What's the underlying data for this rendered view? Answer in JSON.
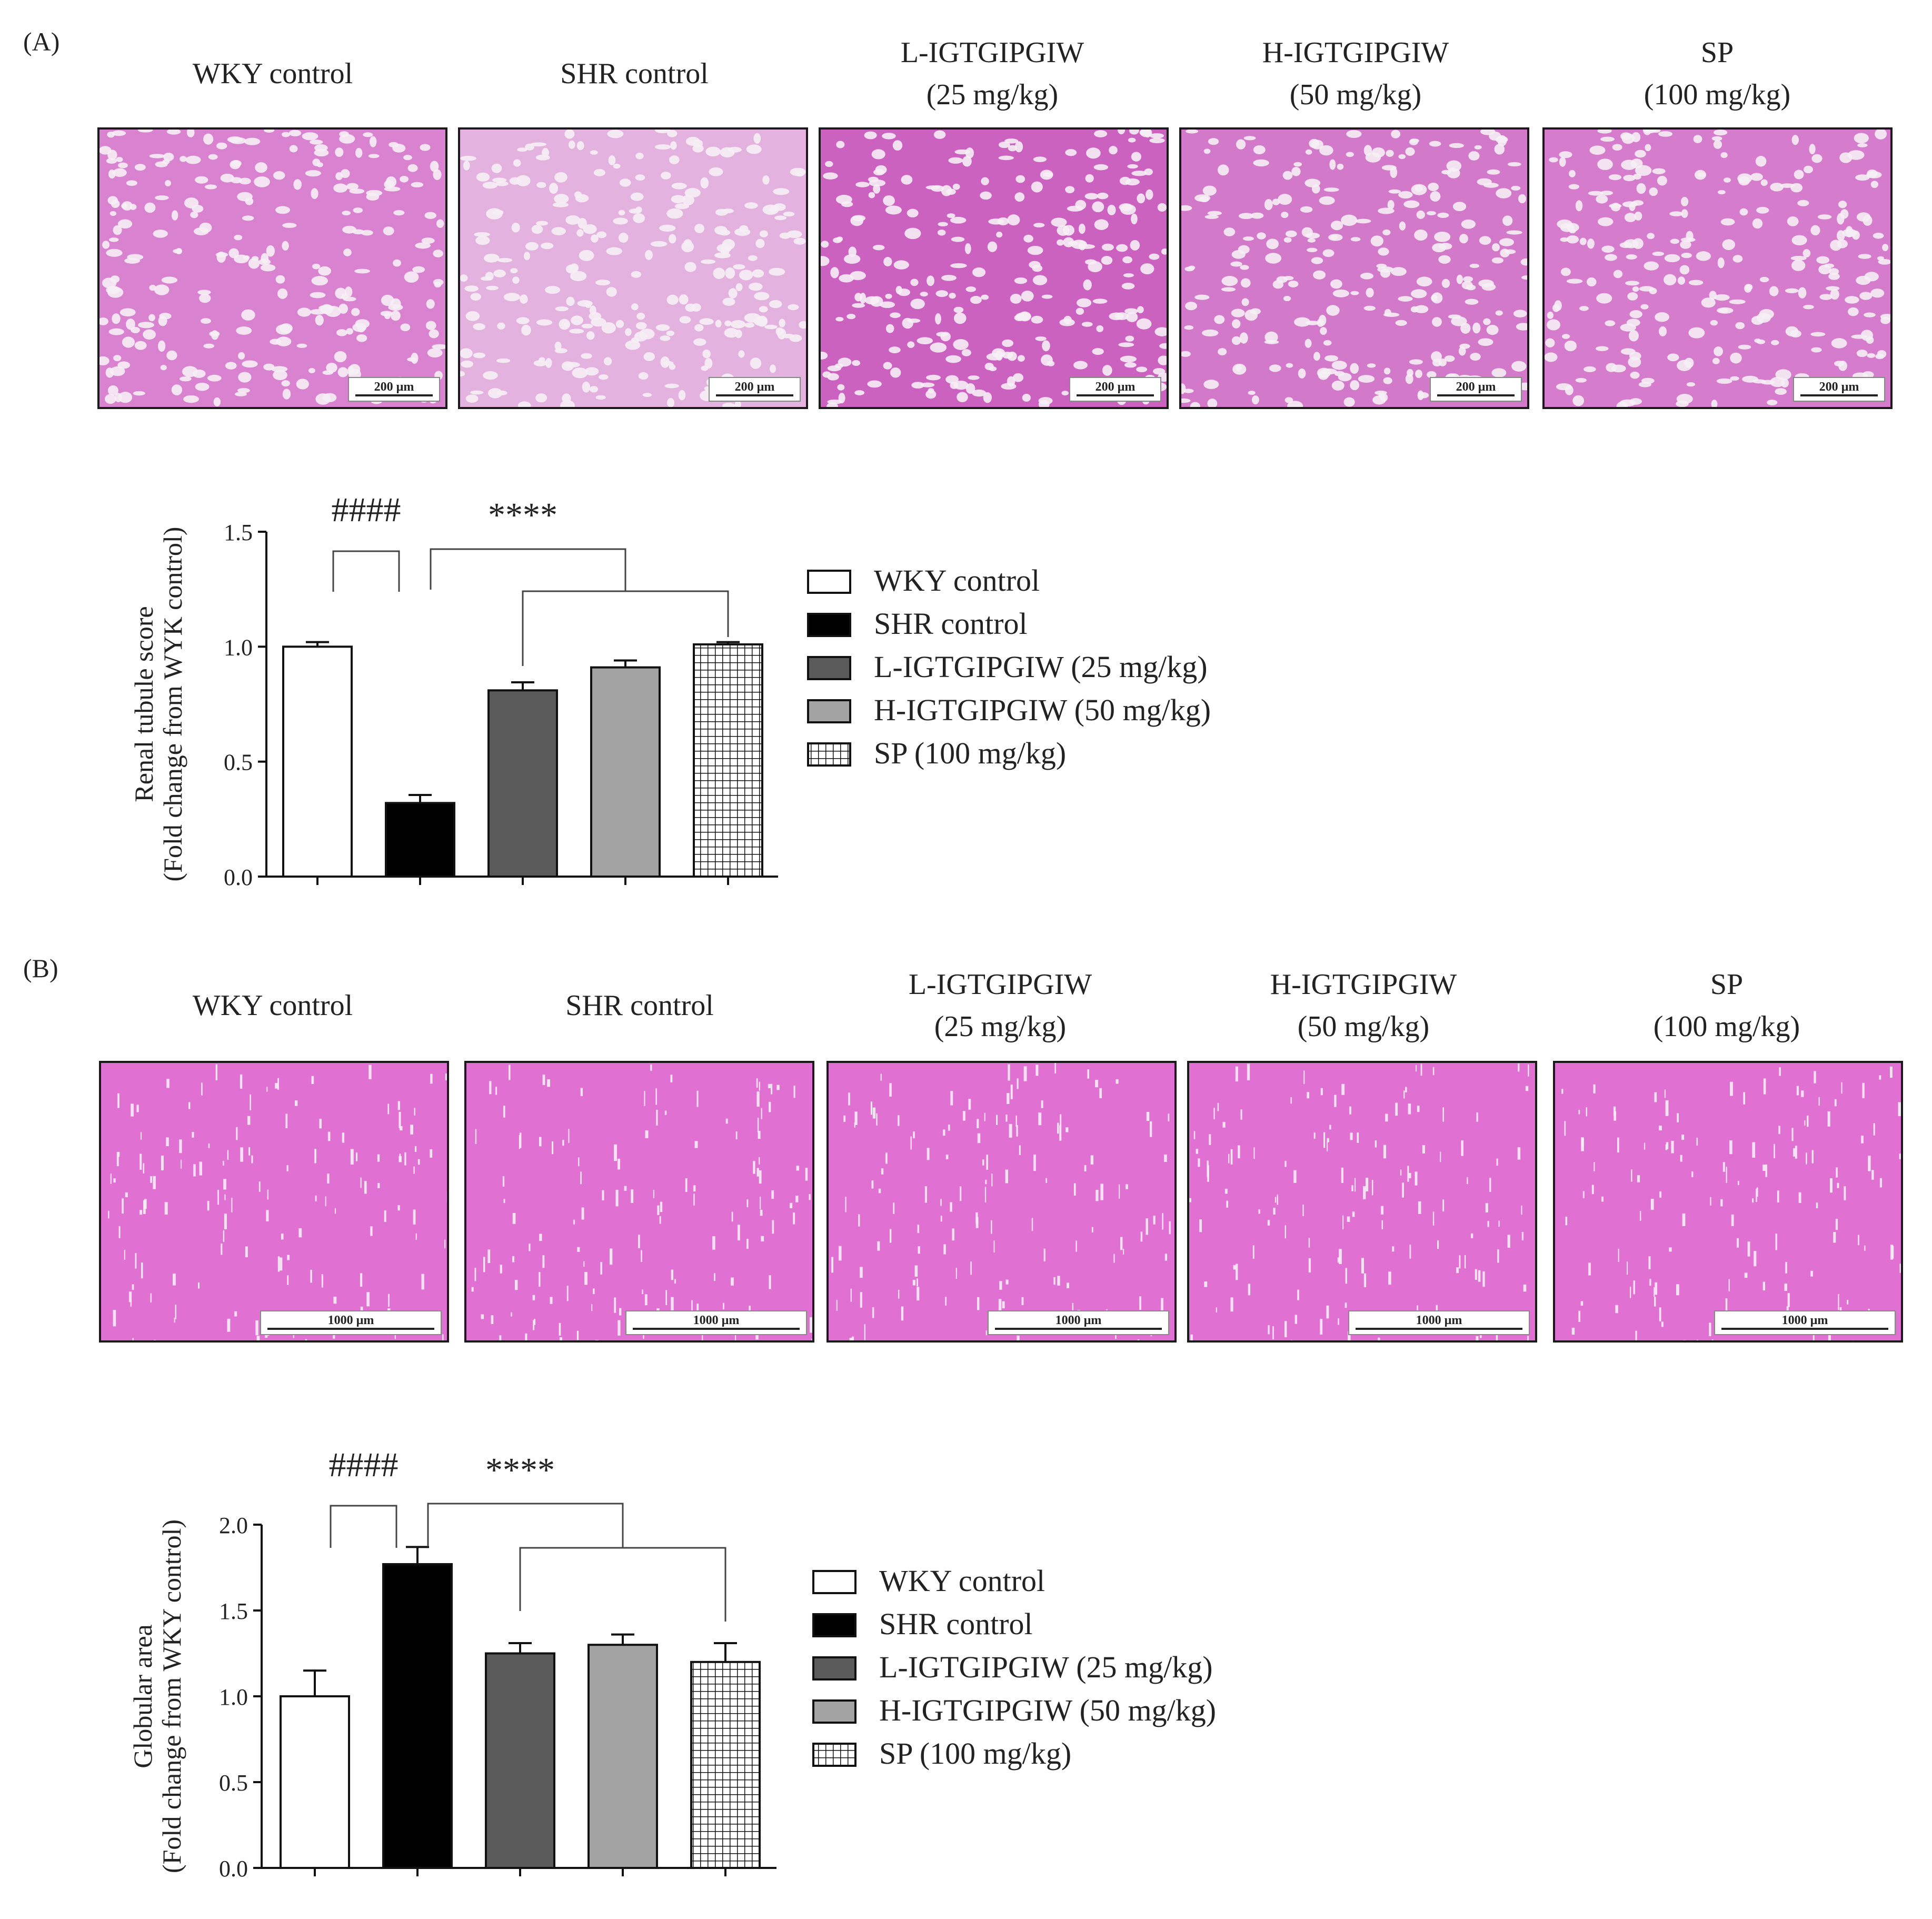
{
  "panels": [
    {
      "letter": "(A)",
      "images": [
        {
          "label": "WKY control",
          "scale": "200 µm",
          "tone": "#d982d0"
        },
        {
          "label": "SHR control",
          "scale": "200 µm",
          "tone": "#e3b2de"
        },
        {
          "label": "L-IGTGIPGIW\n(25 mg/kg)",
          "scale": "200 µm",
          "tone": "#cc62c0"
        },
        {
          "label": "H-IGTGIPGIW\n(50 mg/kg)",
          "scale": "200 µm",
          "tone": "#d27ac9"
        },
        {
          "label": "SP\n(100 mg/kg)",
          "scale": "200 µm",
          "tone": "#d57dcc"
        }
      ]
    },
    {
      "letter": "(B)",
      "images": [
        {
          "label": "WKY control",
          "scale": "1000 µm",
          "tone": "#e070d2"
        },
        {
          "label": "SHR control",
          "scale": "1000 µm",
          "tone": "#e070d2"
        },
        {
          "label": "L-IGTGIPGIW\n(25 mg/kg)",
          "scale": "1000 µm",
          "tone": "#e070d2"
        },
        {
          "label": "H-IGTGIPGIW\n(50 mg/kg)",
          "scale": "1000 µm",
          "tone": "#e070d2"
        },
        {
          "label": "SP\n(100 mg/kg)",
          "scale": "1000 µm",
          "tone": "#e070d2"
        }
      ]
    }
  ],
  "chart_data": [
    {
      "type": "bar",
      "title": "",
      "xlabel": "",
      "ylabel": "Renal tubule score",
      "ylabel2": "(Fold change from WYK control)",
      "ylim": [
        0,
        1.5
      ],
      "yticks": [
        "0.0",
        "0.5",
        "1.0",
        "1.5"
      ],
      "categories": [
        "WKY control",
        "SHR control",
        "L-IGTGIPGIW (25 mg/kg)",
        "H-IGTGIPGIW (50 mg/kg)",
        "SP (100 mg/kg)"
      ],
      "values": [
        1.0,
        0.32,
        0.81,
        0.91,
        1.01
      ],
      "errors": [
        0.02,
        0.035,
        0.035,
        0.03,
        0.01
      ],
      "significance": [
        "####",
        "****"
      ],
      "legend": [
        "WKY control",
        "SHR control",
        "L-IGTGIPGIW (25 mg/kg)",
        "H-IGTGIPGIW (50 mg/kg)",
        "SP (100 mg/kg)"
      ],
      "legend_position": "right"
    },
    {
      "type": "bar",
      "title": "",
      "xlabel": "",
      "ylabel": "Globular area",
      "ylabel2": "(Fold change from WKY control)",
      "ylim": [
        0,
        2.0
      ],
      "yticks": [
        "0.0",
        "0.5",
        "1.0",
        "1.5",
        "2.0"
      ],
      "categories": [
        "WKY control",
        "SHR control",
        "L-IGTGIPGIW (25 mg/kg)",
        "H-IGTGIPGIW (50 mg/kg)",
        "SP (100 mg/kg)"
      ],
      "values": [
        1.0,
        1.77,
        1.25,
        1.3,
        1.2
      ],
      "errors": [
        0.15,
        0.1,
        0.06,
        0.06,
        0.11
      ],
      "significance": [
        "####",
        "****"
      ],
      "legend": [
        "WKY control",
        "SHR control",
        "L-IGTGIPGIW (25 mg/kg)",
        "H-IGTGIPGIW (50 mg/kg)",
        "SP (100 mg/kg)"
      ],
      "legend_position": "right"
    }
  ],
  "bar_colors": [
    "#ffffff",
    "#000000",
    "#5a5a5a",
    "#a3a3a3",
    "pattern-grid"
  ]
}
